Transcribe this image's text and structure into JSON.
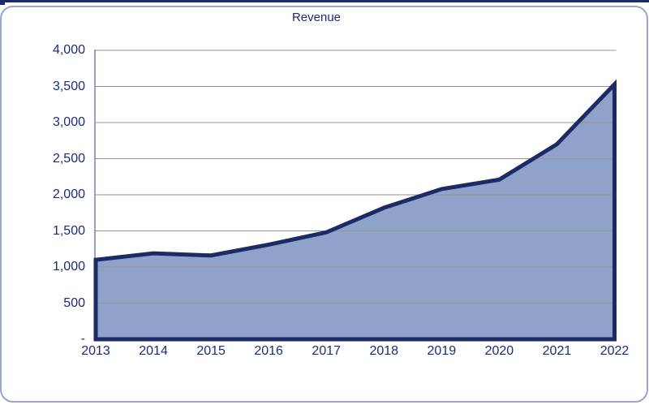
{
  "window": {
    "top_edge_color": "#1c2a66"
  },
  "chart": {
    "title": "Revenue"
  },
  "chart_data": {
    "type": "area",
    "title": "Revenue",
    "categories": [
      "2013",
      "2014",
      "2015",
      "2016",
      "2017",
      "2018",
      "2019",
      "2020",
      "2021",
      "2022"
    ],
    "series": [
      {
        "name": "Revenue",
        "values": [
          1100,
          1190,
          1160,
          1310,
          1480,
          1820,
          2080,
          2210,
          2700,
          3530
        ]
      }
    ],
    "xlabel": "",
    "ylabel": "",
    "ylim": [
      0,
      4000
    ],
    "ytick_interval": 500,
    "ytick_labels_bottom_to_top": [
      "-",
      "500",
      "1,000",
      "1,500",
      "2,000",
      "2,500",
      "3,000",
      "3,500",
      "4,000"
    ],
    "grid": true,
    "legend_position": "none",
    "colors": {
      "line": "#1c2a66",
      "fill": "#8fa2ca",
      "gridline": "#969696",
      "axis_line": "#98a3cd",
      "tick_text": "#1a2b7a",
      "title_text": "#1a2b7a",
      "card_border": "#9ba5cd",
      "background": "#ffffff"
    }
  }
}
